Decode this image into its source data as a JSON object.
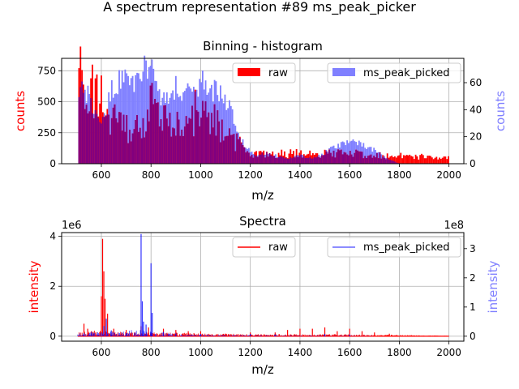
{
  "suptitle": "A spectrum representation #89 ms_peak_picker",
  "colors": {
    "raw": "#ff0000",
    "raw_spectrum": "#ff0000",
    "picked": "#8080ff",
    "picked_line": "#0000ff",
    "overlap": "#800080",
    "grid": "#b0b0b0"
  },
  "chart_data": [
    {
      "type": "bar",
      "title": "Binning - histogram",
      "xlabel": "m/z",
      "ylabel_left": "counts",
      "ylabel_right": "counts",
      "xlim": [
        440,
        2060
      ],
      "ylim_left": [
        0,
        850
      ],
      "ylim_right": [
        0,
        78
      ],
      "xticks": [
        600,
        800,
        1000,
        1200,
        1400,
        1600,
        1800,
        2000
      ],
      "yticks_left": [
        0,
        250,
        500,
        750
      ],
      "yticks_right": [
        0,
        20,
        40,
        60
      ],
      "grid": true,
      "legend_left": "upper-center",
      "legend_right": "upper-right",
      "series": [
        {
          "name": "raw",
          "axis": "left",
          "profile_x": [
            510,
            520,
            535,
            545,
            560,
            575,
            590,
            605,
            620,
            640,
            660,
            680,
            700,
            720,
            740,
            760,
            780,
            800,
            820,
            840,
            860,
            880,
            900,
            920,
            940,
            960,
            980,
            1000,
            1020,
            1040,
            1060,
            1080,
            1100,
            1120,
            1140,
            1160,
            1180,
            1200,
            1250,
            1300,
            1350,
            1400,
            1450,
            1500,
            1550,
            1600,
            1650,
            1700,
            1750,
            1800,
            1850,
            1900,
            1950,
            2000
          ],
          "profile_y": [
            650,
            790,
            600,
            660,
            580,
            540,
            520,
            560,
            450,
            380,
            360,
            300,
            280,
            250,
            380,
            360,
            330,
            480,
            370,
            330,
            340,
            300,
            390,
            330,
            440,
            350,
            430,
            490,
            390,
            420,
            330,
            300,
            260,
            190,
            180,
            160,
            90,
            80,
            80,
            80,
            80,
            90,
            80,
            80,
            80,
            90,
            70,
            70,
            60,
            70,
            50,
            60,
            50,
            50
          ]
        },
        {
          "name": "ms_peak_picked",
          "axis": "right",
          "profile_x": [
            510,
            520,
            540,
            560,
            580,
            600,
            620,
            640,
            660,
            680,
            700,
            720,
            740,
            760,
            780,
            800,
            820,
            840,
            860,
            880,
            900,
            920,
            940,
            960,
            980,
            1000,
            1020,
            1040,
            1060,
            1080,
            1100,
            1120,
            1140,
            1160,
            1180,
            1200,
            1230,
            1260,
            1300,
            1350,
            1400,
            1450,
            1500,
            1550,
            1600,
            1650,
            1700,
            1750,
            1800,
            1850,
            1900,
            1950,
            2000
          ],
          "profile_y": [
            60,
            64,
            52,
            44,
            40,
            36,
            38,
            52,
            58,
            60,
            60,
            62,
            60,
            66,
            70,
            68,
            58,
            52,
            50,
            54,
            56,
            50,
            55,
            60,
            58,
            60,
            58,
            55,
            52,
            50,
            48,
            40,
            30,
            20,
            12,
            10,
            6,
            8,
            6,
            4,
            6,
            4,
            8,
            14,
            16,
            14,
            10,
            4,
            0,
            0,
            0,
            0,
            0
          ]
        }
      ]
    },
    {
      "type": "line",
      "title": "Spectra",
      "xlabel": "m/z",
      "ylabel_left": "intensity",
      "ylabel_right": "intensity",
      "exp_left": "1e6",
      "exp_right": "1e8",
      "xlim": [
        440,
        2060
      ],
      "ylim_left": [
        -0.2,
        4.15
      ],
      "ylim_right": [
        -0.17,
        3.55
      ],
      "xticks": [
        600,
        800,
        1000,
        1200,
        1400,
        1600,
        1800,
        2000
      ],
      "yticks_left": [
        0,
        2,
        4
      ],
      "yticks_right": [
        0,
        1,
        2,
        3
      ],
      "grid": true,
      "legend_left": "upper-center",
      "legend_right": "upper-right",
      "series": [
        {
          "name": "raw",
          "axis": "left",
          "peaks_x": [
            530,
            545,
            560,
            600,
            605,
            610,
            615,
            625,
            650,
            700,
            760,
            790,
            850,
            900,
            950,
            1000,
            1100,
            1200,
            1300,
            1350,
            1400,
            1450,
            1500,
            1550,
            1600,
            1650,
            1700,
            1760
          ],
          "peaks_y": [
            0.5,
            0.3,
            0.2,
            1.6,
            3.9,
            2.6,
            1.5,
            0.9,
            0.3,
            0.25,
            0.4,
            0.35,
            0.3,
            0.25,
            0.2,
            0.2,
            0.1,
            0.15,
            0.15,
            0.25,
            0.3,
            0.3,
            0.35,
            0.2,
            0.3,
            0.2,
            0.15,
            0.1
          ]
        },
        {
          "name": "ms_peak_picked",
          "axis": "right",
          "peaks_x": [
            530,
            560,
            610,
            620,
            640,
            700,
            760,
            765,
            770,
            780,
            800,
            805,
            850,
            900,
            1000,
            1200,
            1300,
            1500,
            1600
          ],
          "peaks_y": [
            0.1,
            0.15,
            0.35,
            0.6,
            0.2,
            0.1,
            3.5,
            1.2,
            0.5,
            0.4,
            2.5,
            0.8,
            0.15,
            0.1,
            0.08,
            0.08,
            0.06,
            0.08,
            0.06
          ]
        }
      ]
    }
  ]
}
